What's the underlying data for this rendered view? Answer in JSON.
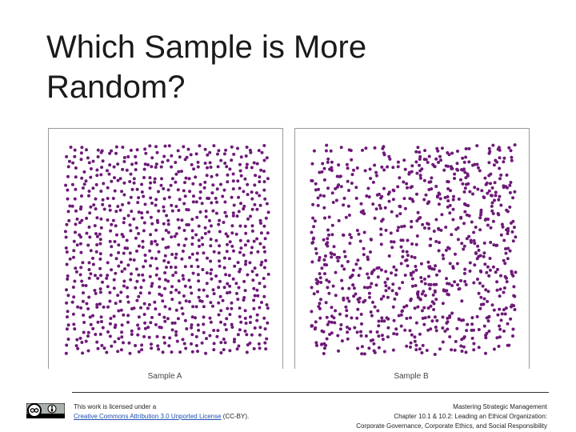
{
  "slide": {
    "title": "Which Sample is More Random?",
    "panels": [
      {
        "caption": "Sample A"
      },
      {
        "caption": "Sample B"
      }
    ],
    "footer": {
      "license_intro": "This work is licensed under a",
      "license_link": "Creative Commons Attribution 3.0 Unported License",
      "license_suffix": "(CC-BY).",
      "book": "Mastering Strategic Management",
      "chapter": "Chapter 10.1 & 10.2: Leading an Ethical Organization:",
      "subtitle": "Corporate Governance, Corporate Ethics, and Social Responsibility"
    }
  }
}
